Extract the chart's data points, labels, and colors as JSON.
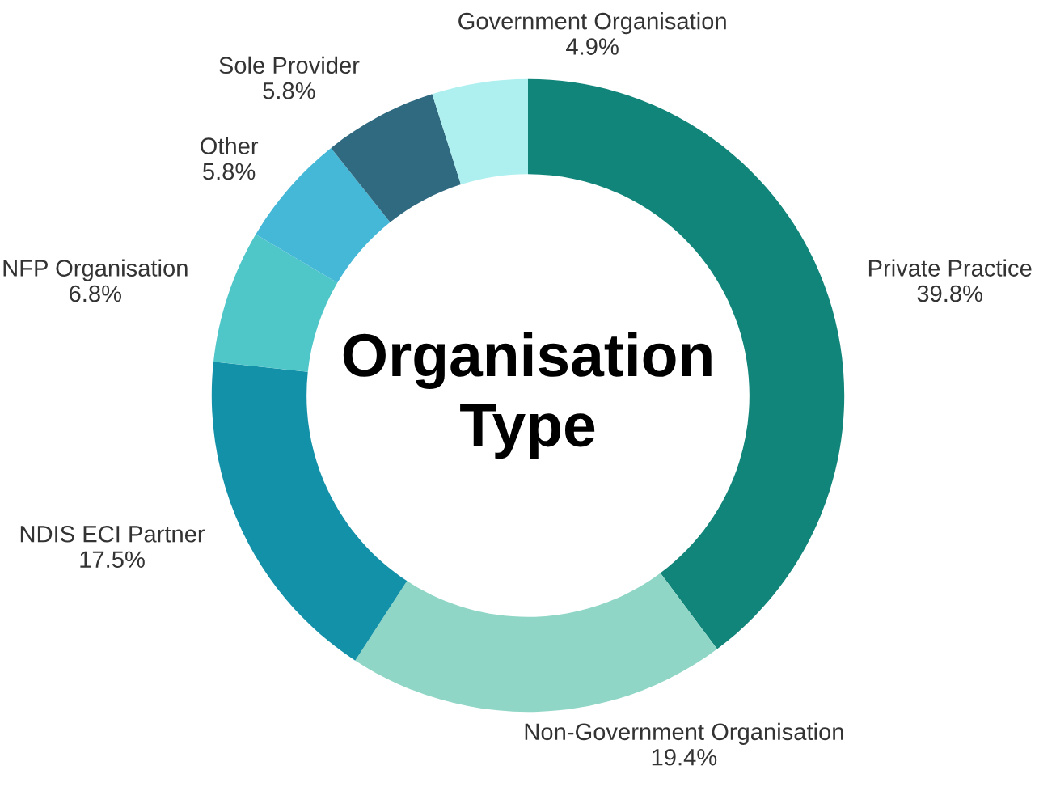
{
  "chart_data": {
    "type": "donut",
    "title": "Organisation\nType",
    "categories": [
      "Private Practice",
      "Non-Government Organisation",
      "NDIS ECI Partner",
      "NFP Organisation",
      "Other",
      "Sole Provider",
      "Government Organisation"
    ],
    "values": [
      39.8,
      19.4,
      17.5,
      6.8,
      5.8,
      5.8,
      4.9
    ],
    "value_labels": [
      "39.8%",
      "19.4%",
      "17.5%",
      "6.8%",
      "5.8%",
      "5.8%",
      "4.9%"
    ],
    "colors": [
      "#12857a",
      "#8fd6c6",
      "#1391a8",
      "#4fc6c8",
      "#45b8d8",
      "#2f6a80",
      "#aef0f0"
    ],
    "legend": false
  }
}
